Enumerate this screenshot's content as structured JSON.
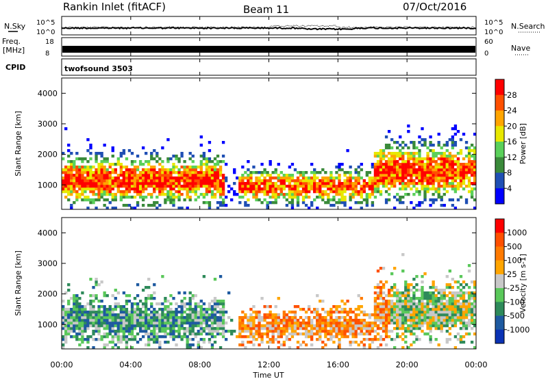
{
  "header": {
    "station_title": "Rankin Inlet (fitACF)",
    "beam": "Beam 11",
    "date": "07/Oct/2016"
  },
  "noise_panel": {
    "left_label": "N.Sky",
    "right_label": "N.Search",
    "left_ticks": [
      "10^5",
      "10^0"
    ],
    "right_ticks": [
      "10^5",
      "10^0"
    ]
  },
  "freq_panel": {
    "left_label": "Freq.",
    "left_unit": "[MHz]",
    "right_label": "Nave",
    "left_ticks": [
      "18",
      "8"
    ],
    "right_ticks": [
      "60",
      "0"
    ]
  },
  "cpid_panel": {
    "label": "CPID",
    "program": "twofsound 3503"
  },
  "chart_data": [
    {
      "type": "heatmap",
      "name": "power",
      "ylabel": "Slant Range [km]",
      "yticks": [
        "1000",
        "2000",
        "3000",
        "4000"
      ],
      "ylim": [
        200,
        4500
      ],
      "xlim": [
        0,
        24
      ],
      "colorbar_label": "Power [dB]",
      "colorbar_ticks": [
        "4",
        "8",
        "12",
        "16",
        "20",
        "24",
        "28"
      ],
      "colors": [
        "#0000ff",
        "#1f4fb4",
        "#3a8a3a",
        "#5ad05a",
        "#e8e800",
        "#ffa500",
        "#ff5000",
        "#ff0000"
      ]
    },
    {
      "type": "heatmap",
      "name": "velocity",
      "ylabel": "Slant Range [km]",
      "yticks": [
        "1000",
        "2000",
        "3000",
        "4000"
      ],
      "ylim": [
        200,
        4500
      ],
      "xlim": [
        0,
        24
      ],
      "colorbar_label": "Velocity [m s-1]",
      "colorbar_ticks": [
        "1000",
        "500",
        "100",
        "25",
        "-25",
        "-100",
        "-500",
        "-1000"
      ],
      "colors": [
        "#0a32b4",
        "#1e5aa0",
        "#2e8a5a",
        "#5ac85a",
        "#c8c8c8",
        "#ffa500",
        "#ff7a00",
        "#ff5000",
        "#ff0000"
      ]
    }
  ],
  "time_axis": {
    "ticks": [
      "00:00",
      "04:00",
      "08:00",
      "12:00",
      "16:00",
      "20:00",
      "00:00"
    ],
    "label": "Time UT"
  }
}
